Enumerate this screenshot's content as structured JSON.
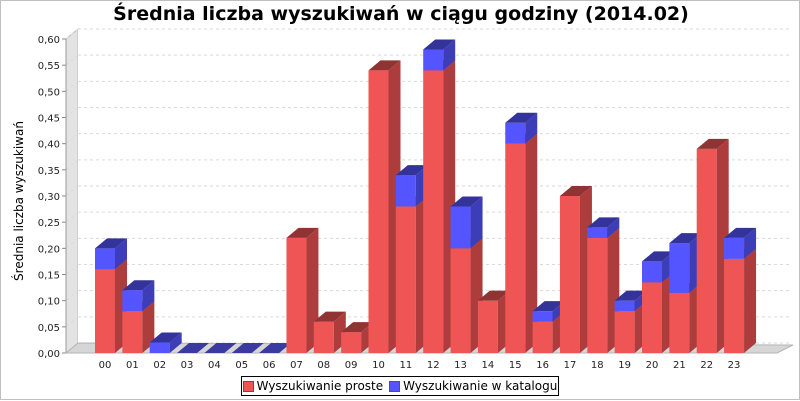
{
  "chart_data": {
    "type": "bar",
    "stacked": true,
    "three_d": true,
    "title": "Średnia liczba wyszukiwań w ciągu godziny (2014.02)",
    "xlabel": "",
    "ylabel": "Średnia liczba wyszukiwań",
    "ylim": [
      0,
      0.6
    ],
    "yticks": [
      "0,00",
      "0,05",
      "0,10",
      "0,15",
      "0,20",
      "0,25",
      "0,30",
      "0,35",
      "0,40",
      "0,45",
      "0,50",
      "0,55",
      "0,60"
    ],
    "grid": true,
    "legend_position": "bottom",
    "categories": [
      "00",
      "01",
      "02",
      "03",
      "04",
      "05",
      "06",
      "07",
      "08",
      "09",
      "10",
      "11",
      "12",
      "13",
      "14",
      "15",
      "16",
      "17",
      "18",
      "19",
      "20",
      "21",
      "22",
      "23"
    ],
    "series": [
      {
        "name": "Wyszukiwanie proste",
        "color": "#f05555",
        "values": [
          0.16,
          0.08,
          0.0,
          0.0,
          0.0,
          0.0,
          0.0,
          0.22,
          0.06,
          0.04,
          0.54,
          0.28,
          0.54,
          0.2,
          0.1,
          0.4,
          0.06,
          0.3,
          0.22,
          0.08,
          0.135,
          0.115,
          0.39,
          0.18
        ]
      },
      {
        "name": "Wyszukiwanie w katalogu",
        "color": "#5555ff",
        "values": [
          0.04,
          0.04,
          0.02,
          0.0,
          0.0,
          0.0,
          0.0,
          0.0,
          0.0,
          0.0,
          0.0,
          0.06,
          0.04,
          0.08,
          0.0,
          0.04,
          0.02,
          0.0,
          0.02,
          0.02,
          0.04,
          0.095,
          0.0,
          0.04
        ]
      }
    ]
  }
}
